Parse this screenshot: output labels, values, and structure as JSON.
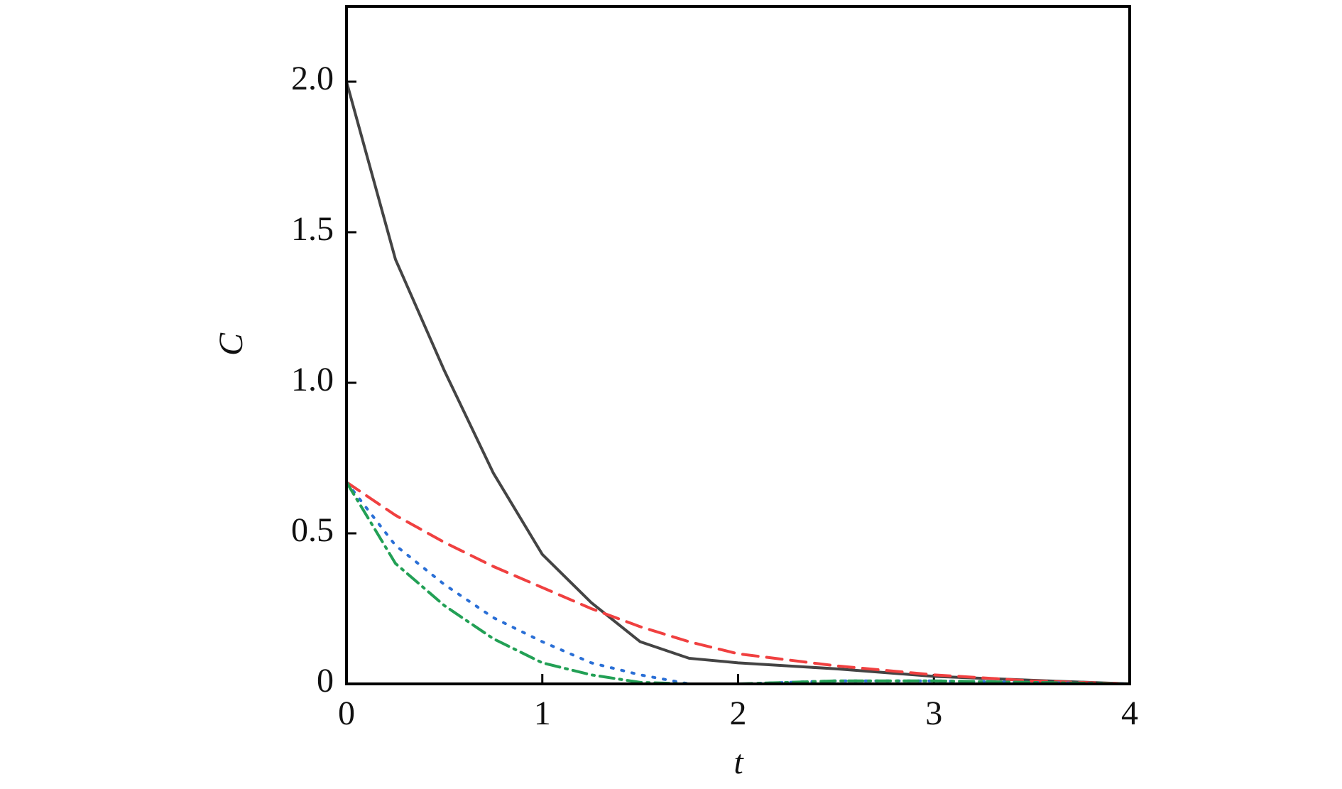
{
  "chart_data": {
    "type": "line",
    "x": [
      0,
      0.25,
      0.5,
      0.75,
      1,
      1.25,
      1.5,
      1.75,
      2,
      2.5,
      3,
      3.5,
      4
    ],
    "series": [
      {
        "color": "#444444",
        "dash": "solid",
        "values": [
          2.0,
          1.41,
          1.04,
          0.7,
          0.43,
          0.27,
          0.14,
          0.085,
          0.07,
          0.05,
          0.025,
          0.012,
          0
        ]
      },
      {
        "color": "#f04040",
        "dash": "dashed",
        "values": [
          0.67,
          0.56,
          0.47,
          0.39,
          0.32,
          0.25,
          0.19,
          0.14,
          0.1,
          0.06,
          0.03,
          0.01,
          0
        ]
      },
      {
        "color": "#2a6fd6",
        "dash": "dotted",
        "values": [
          0.67,
          0.46,
          0.33,
          0.22,
          0.14,
          0.07,
          0.03,
          0.0,
          0,
          0.01,
          0.01,
          0.005,
          0
        ]
      },
      {
        "color": "#22a055",
        "dash": "dashdot",
        "values": [
          0.67,
          0.4,
          0.26,
          0.15,
          0.07,
          0.03,
          0.005,
          0,
          0,
          0.01,
          0.01,
          0.005,
          0
        ]
      }
    ],
    "xlabel": "t",
    "ylabel": "C",
    "xlim": [
      0,
      4
    ],
    "xticks": [
      0,
      1,
      2,
      3,
      4
    ],
    "ylim": [
      0,
      2.25
    ],
    "yticks": [
      0,
      0.5,
      {
        "value": 1,
        "label": "1.0"
      },
      1.5,
      {
        "value": 2,
        "label": "2.0"
      }
    ],
    "grid": false
  }
}
